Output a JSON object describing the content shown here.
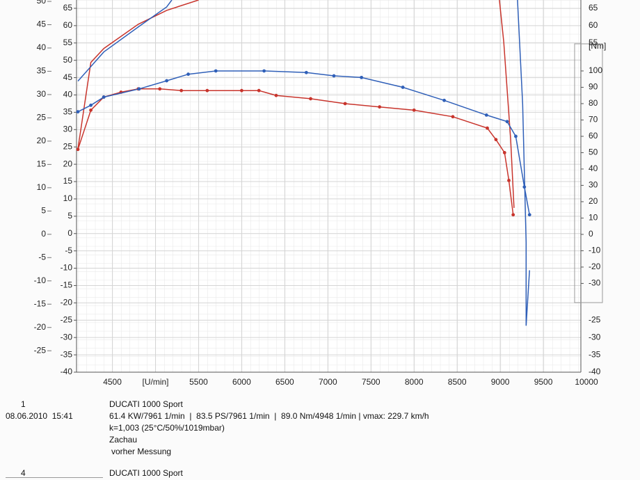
{
  "chart_data": {
    "type": "line",
    "xlim": [
      4100,
      10000
    ],
    "xticks": [
      4500,
      {
        "value": 5000,
        "label": "[U/min]"
      },
      5500,
      6000,
      6500,
      7000,
      7500,
      8000,
      8500,
      9000,
      9500,
      10000
    ],
    "ylim": [
      -40,
      67.4
    ],
    "yticks": [
      65,
      60,
      55,
      50,
      45,
      40,
      35,
      30,
      25,
      20,
      15,
      10,
      5,
      0,
      -5,
      -10,
      -15,
      -20,
      -25,
      -30,
      -35,
      -40
    ],
    "y2lim": [
      -84.3,
      143.4
    ],
    "y2ticks": [
      100,
      90,
      80,
      70,
      60,
      50,
      40,
      30,
      20,
      10,
      0,
      -10,
      -20,
      -30
    ],
    "y2label": "[Nm]",
    "y3lim": [
      -29.6,
      50.3
    ],
    "y3ticks": [
      50,
      45,
      40,
      35,
      30,
      25,
      20,
      15,
      10,
      5,
      0,
      -5,
      -10,
      -15,
      -20,
      -25
    ],
    "grid": true,
    "series": [
      {
        "color": "#c8342c",
        "axis": "y",
        "markers": false,
        "x": [
          4100,
          4250,
          4400,
          4800,
          5130,
          5500,
          8950,
          8990,
          9040,
          9120,
          9160
        ],
        "values": [
          24.4,
          49.4,
          53.4,
          60.4,
          64.4,
          67.4,
          null,
          67.4,
          55.4,
          27.4,
          7.4
        ]
      },
      {
        "color": "#2f5fb8",
        "axis": "y",
        "markers": false,
        "x": [
          4100,
          4400,
          4810,
          5130,
          5190,
          9150,
          9200,
          9260,
          9300,
          9300,
          9340
        ],
        "values": [
          44,
          52.4,
          59.8,
          65.4,
          67.4,
          null,
          67.4,
          37.4,
          -2.6,
          -26.6,
          -10.6
        ]
      },
      {
        "color": "#c8342c",
        "axis": "y2",
        "markers": true,
        "x": [
          4100,
          4250,
          4400,
          4600,
          4800,
          5050,
          5300,
          5600,
          6000,
          6200,
          6400,
          6800,
          7200,
          7600,
          8000,
          8450,
          8850,
          8950,
          9050,
          9100,
          9150
        ],
        "values": [
          52,
          76,
          84,
          87,
          89,
          89,
          88,
          88,
          88,
          88,
          85,
          83,
          80,
          78,
          76,
          72,
          65,
          58,
          50,
          33,
          12
        ]
      },
      {
        "color": "#2f5fb8",
        "axis": "y2",
        "markers": true,
        "x": [
          4100,
          4250,
          4400,
          4810,
          5130,
          5380,
          5700,
          6260,
          6750,
          7070,
          7390,
          7870,
          8350,
          8840,
          9080,
          9180,
          9280,
          9340
        ],
        "values": [
          75,
          79,
          84,
          89,
          94,
          98,
          100,
          100,
          99,
          97,
          96,
          90,
          82,
          73,
          69,
          60,
          29,
          12
        ]
      }
    ]
  },
  "runs": [
    {
      "number": "1",
      "vehicle": "DUCATI 1000 Sport",
      "date": "08.06.2010  15:41",
      "results": "61.4 KW/7961 1/min  |  83.5 PS/7961 1/min  |  89.0 Nm/4948 1/min | vmax: 229.7 km/h",
      "conditions": "k=1,003 (25°C/50%/1019mbar)",
      "operator": "Zachau",
      "note": "vorher Messung"
    },
    {
      "number": "4",
      "vehicle": "DUCATI 1000 Sport"
    }
  ]
}
